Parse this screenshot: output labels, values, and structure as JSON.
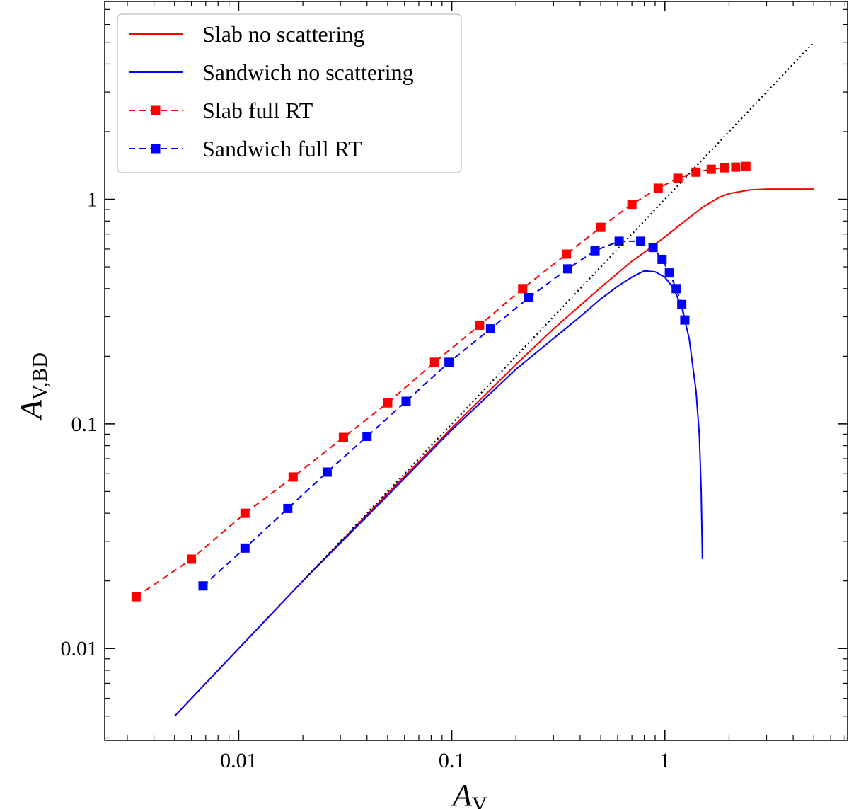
{
  "chart_data": {
    "type": "line",
    "title": "",
    "xlabel": "A",
    "xlabel_sub": "V",
    "ylabel": "A",
    "ylabel_sub": "V,BD",
    "xscale": "log",
    "yscale": "log",
    "xlim": [
      0.00235,
      7.2
    ],
    "ylim": [
      0.0039,
      7.6
    ],
    "xticks": [
      0.01,
      0.1,
      1
    ],
    "xtick_labels": [
      "0.01",
      "0.1",
      "1"
    ],
    "yticks": [
      0.01,
      0.1,
      1
    ],
    "ytick_labels": [
      "0.01",
      "0.1",
      "1"
    ],
    "grid": false,
    "legend_position": "top-left",
    "series": [
      {
        "name": "Slab no scattering",
        "color": "#ff0000",
        "style": "solid",
        "marker": "none",
        "x": [
          0.005,
          0.01,
          0.02,
          0.05,
          0.1,
          0.2,
          0.3,
          0.5,
          0.7,
          0.8,
          1.0,
          1.2,
          1.5,
          1.8,
          2.0,
          2.5,
          3.0,
          4.0,
          5.0
        ],
        "y": [
          0.005,
          0.01,
          0.02,
          0.049,
          0.096,
          0.184,
          0.265,
          0.405,
          0.53,
          0.58,
          0.68,
          0.78,
          0.92,
          1.02,
          1.06,
          1.1,
          1.11,
          1.11,
          1.11
        ]
      },
      {
        "name": "Sandwich no scattering",
        "color": "#0000ff",
        "style": "solid",
        "marker": "none",
        "x": [
          0.005,
          0.01,
          0.02,
          0.05,
          0.1,
          0.2,
          0.3,
          0.4,
          0.5,
          0.6,
          0.7,
          0.8,
          0.9,
          1.0,
          1.1,
          1.2,
          1.3,
          1.4,
          1.45,
          1.48,
          1.5
        ],
        "y": [
          0.005,
          0.01,
          0.02,
          0.048,
          0.094,
          0.175,
          0.24,
          0.3,
          0.36,
          0.41,
          0.45,
          0.48,
          0.475,
          0.45,
          0.4,
          0.33,
          0.24,
          0.14,
          0.09,
          0.05,
          0.025
        ]
      },
      {
        "name": "Slab full RT",
        "color": "#ff0000",
        "style": "dashed",
        "marker": "square",
        "x": [
          0.0033,
          0.006,
          0.0107,
          0.018,
          0.031,
          0.05,
          0.083,
          0.135,
          0.215,
          0.345,
          0.5,
          0.7,
          0.93,
          1.15,
          1.4,
          1.65,
          1.9,
          2.15,
          2.4
        ],
        "y": [
          0.017,
          0.025,
          0.04,
          0.058,
          0.087,
          0.124,
          0.188,
          0.275,
          0.4,
          0.57,
          0.75,
          0.95,
          1.12,
          1.24,
          1.32,
          1.36,
          1.38,
          1.39,
          1.4
        ]
      },
      {
        "name": "Sandwich full RT",
        "color": "#0000ff",
        "style": "dashed",
        "marker": "square",
        "x": [
          0.0068,
          0.0107,
          0.017,
          0.026,
          0.04,
          0.061,
          0.097,
          0.152,
          0.23,
          0.35,
          0.47,
          0.61,
          0.77,
          0.88,
          0.97,
          1.05,
          1.13,
          1.2,
          1.24
        ],
        "y": [
          0.019,
          0.028,
          0.042,
          0.061,
          0.088,
          0.126,
          0.188,
          0.265,
          0.365,
          0.49,
          0.59,
          0.65,
          0.65,
          0.61,
          0.54,
          0.47,
          0.4,
          0.34,
          0.29
        ]
      },
      {
        "name": "",
        "color": "#000000",
        "style": "dotted",
        "marker": "none",
        "x": [
          0.02,
          5.0
        ],
        "y": [
          0.02,
          5.0
        ]
      }
    ]
  }
}
